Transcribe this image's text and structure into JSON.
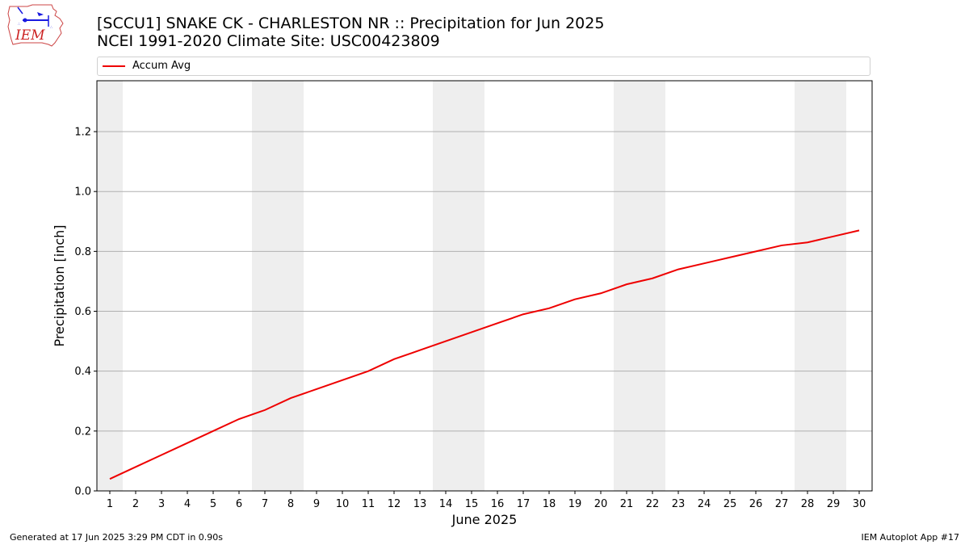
{
  "header": {
    "title_line1": "[SCCU1] SNAKE CK - CHARLESTON  NR :: Precipitation for Jun 2025",
    "title_line2": "NCEI 1991-2020 Climate Site: USC00423809",
    "logo_text": "IEM",
    "logo_icon": "iem-state-logo"
  },
  "footer": {
    "generated": "Generated at 17 Jun 2025 3:29 PM CDT in 0.90s",
    "app": "IEM Autoplot App #17"
  },
  "chart_data": {
    "type": "line",
    "title": "[SCCU1] SNAKE CK - CHARLESTON  NR :: Precipitation for Jun 2025",
    "subtitle": "NCEI 1991-2020 Climate Site: USC00423809",
    "xlabel": "June 2025",
    "ylabel": "Precipitation [inch]",
    "x": [
      1,
      2,
      3,
      4,
      5,
      6,
      7,
      8,
      9,
      10,
      11,
      12,
      13,
      14,
      15,
      16,
      17,
      18,
      19,
      20,
      21,
      22,
      23,
      24,
      25,
      26,
      27,
      28,
      29,
      30
    ],
    "xlim": [
      0.5,
      30.5
    ],
    "ylim": [
      0,
      1.37
    ],
    "yticks": [
      0.0,
      0.2,
      0.4,
      0.6,
      0.8,
      1.0,
      1.2
    ],
    "ytick_labels": [
      "0.0",
      "0.2",
      "0.4",
      "0.6",
      "0.8",
      "1.0",
      "1.2"
    ],
    "xtick_labels": [
      "1",
      "2",
      "3",
      "4",
      "5",
      "6",
      "7",
      "8",
      "9",
      "10",
      "11",
      "12",
      "13",
      "14",
      "15",
      "16",
      "17",
      "18",
      "19",
      "20",
      "21",
      "22",
      "23",
      "24",
      "25",
      "26",
      "27",
      "28",
      "29",
      "30"
    ],
    "grid": "horizontal",
    "legend_placement": "top",
    "weekend_shading": [
      [
        0.5,
        1.5
      ],
      [
        6.5,
        8.5
      ],
      [
        13.5,
        15.5
      ],
      [
        20.5,
        22.5
      ],
      [
        27.5,
        29.5
      ]
    ],
    "series": [
      {
        "name": "Accum Avg",
        "color": "#ee0000",
        "values": [
          0.04,
          0.08,
          0.12,
          0.16,
          0.2,
          0.24,
          0.27,
          0.31,
          0.34,
          0.37,
          0.4,
          0.44,
          0.47,
          0.5,
          0.53,
          0.56,
          0.59,
          0.61,
          0.64,
          0.66,
          0.69,
          0.71,
          0.74,
          0.76,
          0.78,
          0.8,
          0.82,
          0.83,
          0.85,
          0.87
        ]
      }
    ]
  }
}
